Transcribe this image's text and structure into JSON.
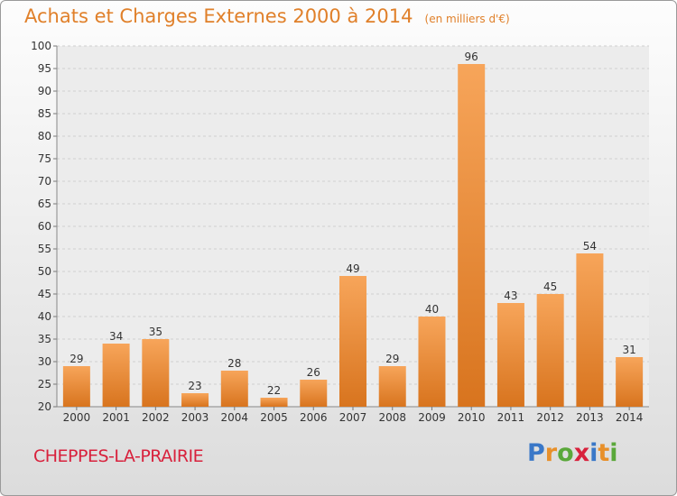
{
  "title": "Achats et Charges Externes 2000 à 2014",
  "unit": "(en milliers d'€)",
  "commune": "CHEPPES-LA-PRAIRIE",
  "brand": {
    "text": "Proxiti",
    "letter_colors": [
      "#3a78c8",
      "#e8902a",
      "#5aa83a",
      "#d8213c",
      "#3a78c8",
      "#e8902a",
      "#5aa83a"
    ]
  },
  "colors": {
    "bar_light": "#f7a55a",
    "bar_dark": "#d8741e",
    "title": "#e0802a",
    "commune": "#d8213c"
  },
  "chart_data": {
    "type": "bar",
    "categories": [
      "2000",
      "2001",
      "2002",
      "2003",
      "2004",
      "2005",
      "2006",
      "2007",
      "2008",
      "2009",
      "2010",
      "2011",
      "2012",
      "2013",
      "2014"
    ],
    "values": [
      29,
      34,
      35,
      23,
      28,
      22,
      26,
      49,
      29,
      40,
      96,
      43,
      45,
      54,
      31
    ],
    "value_labels": [
      "29",
      "34",
      "35",
      "23",
      "28",
      "22",
      "26",
      "49",
      "29",
      "40",
      "96",
      "43",
      "45",
      "54",
      "31"
    ],
    "ylim": [
      20,
      100
    ],
    "yticks": [
      "20",
      "25",
      "30",
      "35",
      "40",
      "45",
      "50",
      "55",
      "60",
      "65",
      "70",
      "75",
      "80",
      "85",
      "90",
      "95",
      "100"
    ],
    "grid": true,
    "legend": "none"
  }
}
